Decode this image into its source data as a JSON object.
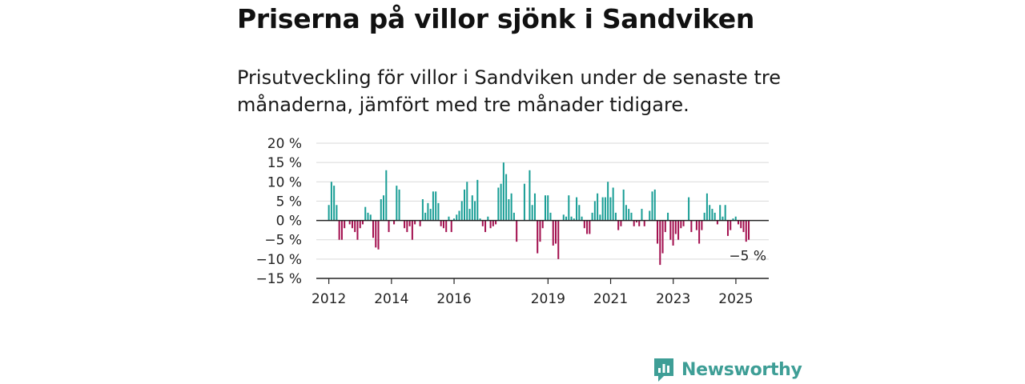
{
  "header": {
    "title": "Priserna på villor sjönk i Sandviken",
    "subtitle": "Prisutveckling för villor i Sandviken under de senaste tre månaderna, jämfört med tre månader tidigare."
  },
  "brand": {
    "name": "Newsworthy",
    "icon": "newsworthy-logo-icon",
    "color": "#3e9e96"
  },
  "chart_data": {
    "type": "bar",
    "title": "Priserna på villor sjönk i Sandviken",
    "subtitle": "Prisutveckling för villor i Sandviken under de senaste tre månaderna, jämfört med tre månader tidigare.",
    "xlabel": "",
    "ylabel": "",
    "ylim": [
      -15,
      20
    ],
    "yticks": [
      20,
      15,
      10,
      5,
      0,
      -5,
      -10,
      -15
    ],
    "ytick_labels": [
      "20 %",
      "15 %",
      "10 %",
      "5 %",
      "0 %",
      "−5 %",
      "−10 %",
      "−15 %"
    ],
    "xlim": [
      2011.6,
      2026.05
    ],
    "xticks": [
      2012,
      2014,
      2016,
      2019,
      2021,
      2023,
      2025
    ],
    "xtick_labels": [
      "2012",
      "2014",
      "2016",
      "2019",
      "2021",
      "2023",
      "2025"
    ],
    "x_start": 2012.0,
    "x_step": 0.0833,
    "colors": {
      "positive": "#1a9e96",
      "negative": "#a3104f"
    },
    "last_value_label": "−5 %",
    "grid": true,
    "values": [
      4,
      10,
      9,
      4,
      -5,
      -5,
      -2,
      0,
      -1,
      -2,
      -3,
      -5,
      -2,
      -1,
      3.5,
      2,
      1.5,
      -4.5,
      -7,
      -7.5,
      5.5,
      6.5,
      13,
      -3,
      0,
      -1,
      9,
      8,
      0,
      -2,
      -3,
      -1.5,
      -5,
      -1,
      0,
      -1.5,
      5.5,
      2,
      4.5,
      3,
      7.5,
      7.5,
      4.5,
      -1.5,
      -2,
      -3,
      1,
      -3,
      0.5,
      1.5,
      2.5,
      5,
      8,
      10,
      3,
      6.5,
      5,
      10.5,
      0.5,
      -1.5,
      -3,
      1,
      -2,
      -1.5,
      -1,
      8.5,
      9.5,
      15,
      12,
      5.5,
      7,
      2,
      -5.5,
      0,
      0,
      9.5,
      0,
      13,
      4,
      7,
      -8.5,
      -5.5,
      -2,
      6.5,
      6.5,
      2,
      -6.5,
      -6,
      -10,
      0,
      1.5,
      1,
      6.5,
      1,
      0.5,
      6,
      4,
      1,
      -2,
      -3.5,
      -3.5,
      2,
      5,
      7,
      1.5,
      6,
      6,
      10,
      6,
      8.5,
      2,
      -2.5,
      -1.5,
      8,
      4,
      3,
      2,
      -1.5,
      -0.5,
      -1.5,
      3,
      -1.5,
      0,
      2.5,
      7.5,
      8,
      -6,
      -11.5,
      -8.5,
      -3,
      2,
      -5,
      -6.5,
      -3.5,
      -5,
      -2,
      -1.5,
      0,
      6,
      -3,
      0,
      -2.5,
      -6,
      -2.5,
      2,
      7,
      4,
      3,
      2,
      -1,
      4,
      1,
      4,
      -4,
      -2.5,
      0.5,
      1,
      -1,
      -2,
      -3,
      -5.5,
      -5
    ]
  }
}
